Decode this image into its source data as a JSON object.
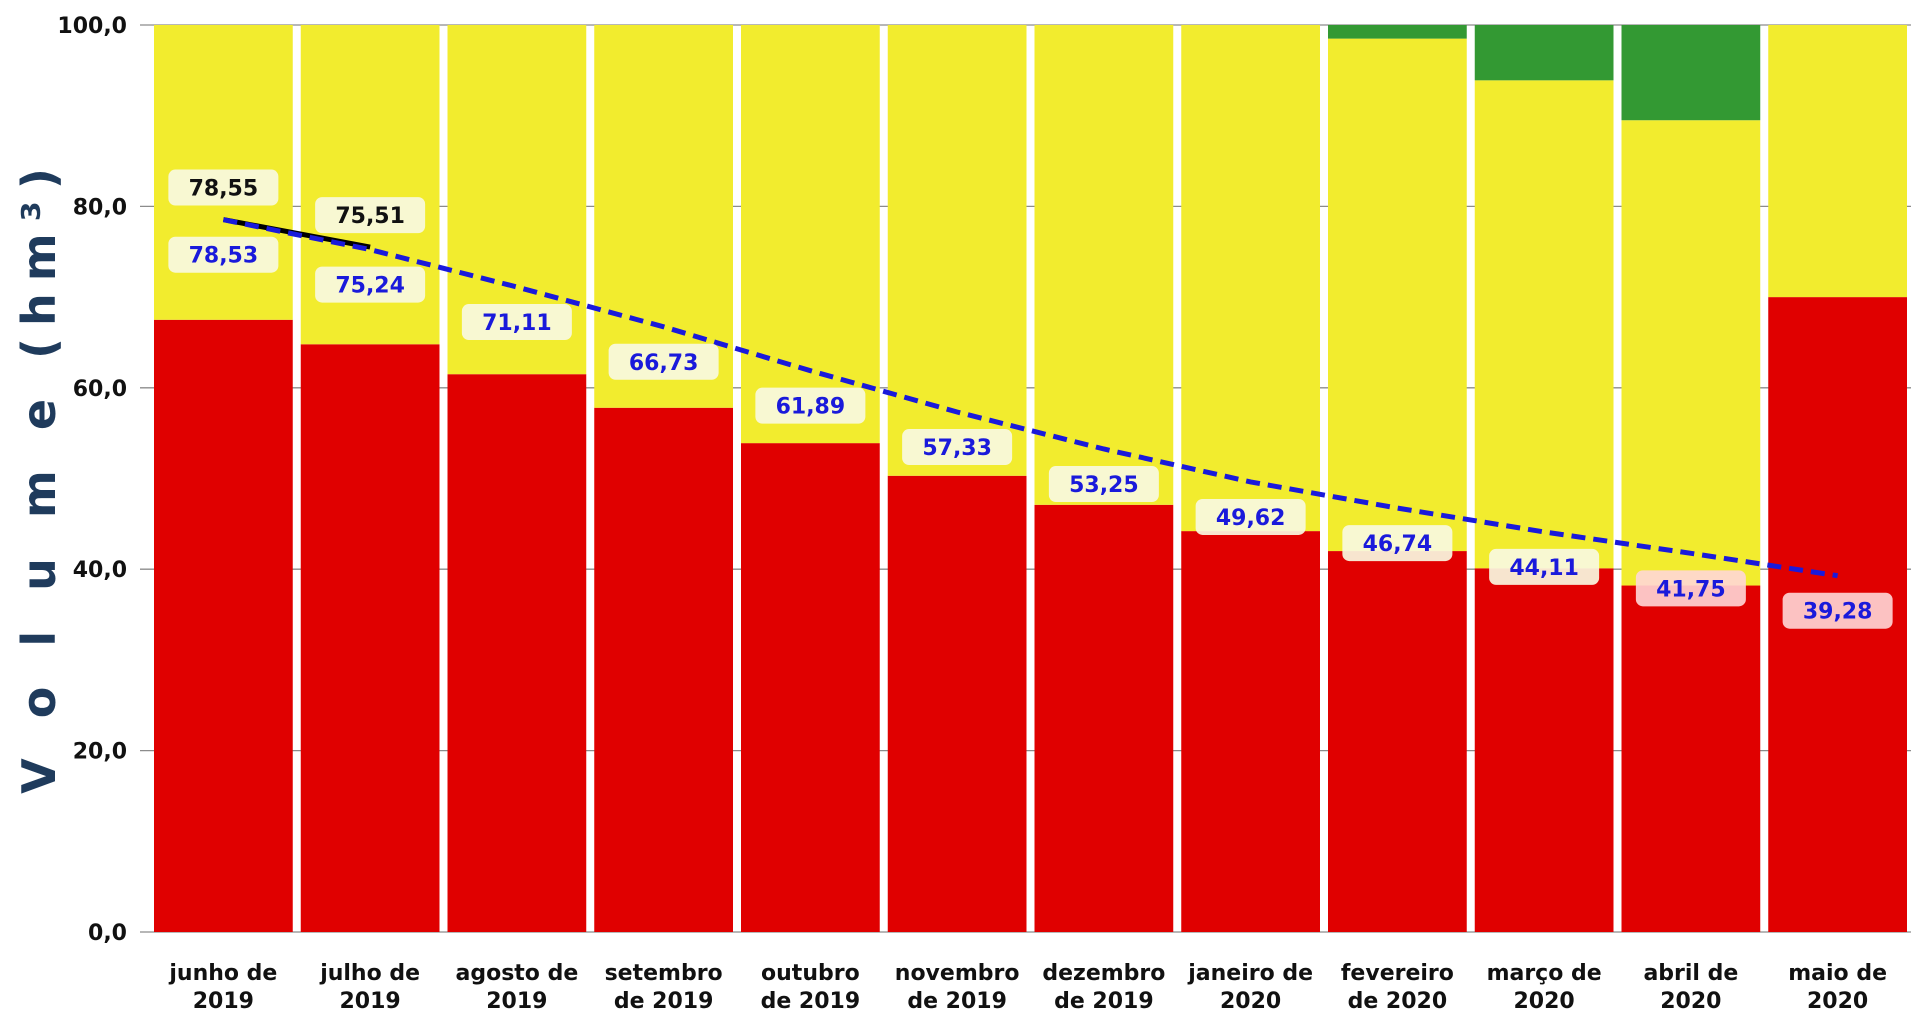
{
  "chart_data": {
    "type": "bar",
    "stacked": true,
    "ylabel": "V o l u m e (hm³)",
    "ylim": [
      0,
      100
    ],
    "yticks": [
      "0,0",
      "20,0",
      "40,0",
      "60,0",
      "80,0",
      "100,0"
    ],
    "grid": "horizontal",
    "categories": [
      [
        "junho de",
        "2019"
      ],
      [
        "julho de",
        "2019"
      ],
      [
        "agosto de",
        "2019"
      ],
      [
        "setembro",
        "de 2019"
      ],
      [
        "outubro",
        "de 2019"
      ],
      [
        "novembro",
        "de 2019"
      ],
      [
        "dezembro",
        "de 2019"
      ],
      [
        "janeiro de",
        "2020"
      ],
      [
        "fevereiro",
        "de 2020"
      ],
      [
        "março de",
        "2020"
      ],
      [
        "abril de",
        "2020"
      ],
      [
        "maio de",
        "2020"
      ]
    ],
    "series": [
      {
        "color": "#e00000",
        "values": [
          67.5,
          64.8,
          61.5,
          57.8,
          53.9,
          50.3,
          47.1,
          44.2,
          42.0,
          40.1,
          38.2,
          70.0
        ]
      },
      {
        "color": "#f2ec2e",
        "values": [
          32.5,
          35.2,
          38.5,
          42.2,
          46.1,
          49.7,
          52.9,
          55.8,
          56.5,
          53.8,
          51.3,
          30.0
        ]
      },
      {
        "color": "#339933",
        "values": [
          0,
          0,
          0,
          0,
          0,
          0,
          0,
          0,
          1.5,
          6.1,
          10.5,
          0
        ]
      }
    ],
    "lines": [
      {
        "color": "#000000",
        "style": "solid",
        "values": [
          78.55,
          75.51
        ],
        "labels": [
          "78,55",
          "75,51"
        ]
      },
      {
        "color": "#1a1adb",
        "style": "dashed",
        "values": [
          78.53,
          75.24,
          71.11,
          66.73,
          61.89,
          57.33,
          53.25,
          49.62,
          46.74,
          44.11,
          41.75,
          39.28
        ],
        "labels": [
          "78,53",
          "75,24",
          "71,11",
          "66,73",
          "61,89",
          "57,33",
          "53,25",
          "49,62",
          "46,74",
          "44,11",
          "41,75",
          "39,28"
        ]
      }
    ]
  }
}
